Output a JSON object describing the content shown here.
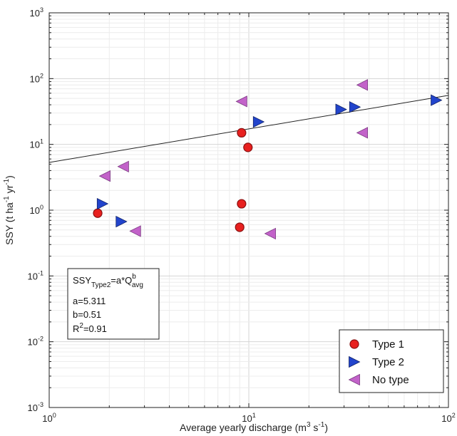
{
  "chart_data": {
    "type": "scatter",
    "x_scale": "log",
    "y_scale": "log",
    "xlim": [
      1,
      100
    ],
    "ylim": [
      0.001,
      1000
    ],
    "grid": true,
    "legend_position": "bottom-right",
    "x_ticks": [
      {
        "base": "10",
        "exp": "0"
      },
      {
        "base": "10",
        "exp": "1"
      },
      {
        "base": "10",
        "exp": "2"
      }
    ],
    "y_ticks": [
      {
        "base": "10",
        "exp": "-3"
      },
      {
        "base": "10",
        "exp": "-2"
      },
      {
        "base": "10",
        "exp": "-1"
      },
      {
        "base": "10",
        "exp": "0"
      },
      {
        "base": "10",
        "exp": "1"
      },
      {
        "base": "10",
        "exp": "2"
      },
      {
        "base": "10",
        "exp": "3"
      }
    ],
    "xlabel": {
      "text": "Average yearly discharge (m",
      "sup1": "3",
      "mid": " s",
      "sup2": "-1",
      "end": ")"
    },
    "ylabel": {
      "text": "SSY (t ha",
      "sup1": "-1",
      "mid": " yr",
      "sup2": "-1",
      "end": ")"
    },
    "series": [
      {
        "name": "Type 1",
        "marker": "circle",
        "color": "#e8201f",
        "edge": "#8a1010",
        "points": [
          {
            "x": 1.75,
            "y": 0.9
          },
          {
            "x": 9.2,
            "y": 15
          },
          {
            "x": 9.9,
            "y": 9
          },
          {
            "x": 9.2,
            "y": 1.25
          },
          {
            "x": 9.0,
            "y": 0.55
          }
        ]
      },
      {
        "name": "Type 2",
        "marker": "triangle-right",
        "color": "#2244cc",
        "edge": "#112266",
        "points": [
          {
            "x": 1.85,
            "y": 1.25
          },
          {
            "x": 2.3,
            "y": 0.67
          },
          {
            "x": 11.2,
            "y": 22
          },
          {
            "x": 29,
            "y": 34
          },
          {
            "x": 34,
            "y": 37
          },
          {
            "x": 87,
            "y": 47
          }
        ]
      },
      {
        "name": "No type",
        "marker": "triangle-left",
        "color": "#c262c9",
        "edge": "#7a3a80",
        "points": [
          {
            "x": 1.9,
            "y": 3.3
          },
          {
            "x": 2.35,
            "y": 4.6
          },
          {
            "x": 2.7,
            "y": 0.48
          },
          {
            "x": 9.2,
            "y": 45
          },
          {
            "x": 12.8,
            "y": 0.44
          },
          {
            "x": 37,
            "y": 80
          },
          {
            "x": 37,
            "y": 15
          }
        ]
      }
    ],
    "fit_line": {
      "a": 5.311,
      "b": 0.51,
      "x_range": [
        1,
        100
      ]
    },
    "annotation": {
      "line1_main": "SSY",
      "line1_sub": "Type2",
      "line1_eq": "=a*Q",
      "line1_sup": "b",
      "line1_sub2": "avg",
      "line2": "a=5.311",
      "line3": "b=0.51",
      "line4_main": "R",
      "line4_sup": "2",
      "line4_end": "=0.91"
    }
  }
}
